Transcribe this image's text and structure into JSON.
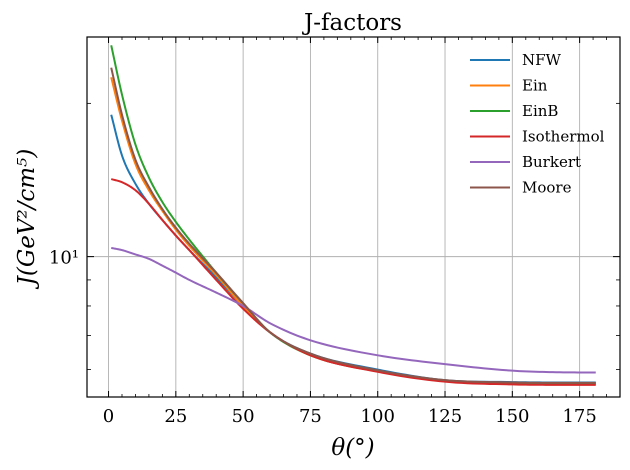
{
  "chart_data": {
    "type": "line",
    "title": "J-factors",
    "xlabel": "θ(°)",
    "ylabel": "J(GeV²/cm⁵)",
    "xlim": [
      -8,
      190
    ],
    "ylim": [
      5.3,
      27
    ],
    "yscale": "log",
    "grid": true,
    "legend_position": "top-right",
    "xticks": [
      0,
      25,
      50,
      75,
      100,
      125,
      150,
      175
    ],
    "xtick_labels": [
      "0",
      "25",
      "50",
      "75",
      "100",
      "125",
      "150",
      "175"
    ],
    "yticks": [
      10
    ],
    "ytick_labels": [
      "10¹"
    ],
    "x": [
      1,
      5,
      10,
      15,
      20,
      25,
      30,
      40,
      50,
      60,
      75,
      100,
      125,
      150,
      165,
      181
    ],
    "series": [
      {
        "name": "NFW",
        "color": "#1f77b4",
        "values": [
          19.0,
          15.8,
          13.9,
          12.7,
          11.8,
          11.0,
          10.3,
          9.1,
          8.0,
          7.1,
          6.45,
          6.0,
          5.72,
          5.67,
          5.66,
          5.66
        ]
      },
      {
        "name": "Ein",
        "color": "#ff7f0e",
        "values": [
          22.5,
          18.5,
          15.2,
          13.5,
          12.3,
          11.3,
          10.5,
          9.2,
          8.0,
          7.1,
          6.4,
          5.95,
          5.7,
          5.63,
          5.62,
          5.62
        ]
      },
      {
        "name": "EinB",
        "color": "#2ca02c",
        "values": [
          26.0,
          20.8,
          16.6,
          14.3,
          12.8,
          11.7,
          10.8,
          9.3,
          8.1,
          7.1,
          6.4,
          5.95,
          5.7,
          5.64,
          5.63,
          5.63
        ]
      },
      {
        "name": "Isothermol",
        "color": "#d62728",
        "values": [
          14.2,
          14.0,
          13.5,
          12.7,
          11.8,
          11.0,
          10.3,
          9.0,
          7.9,
          7.1,
          6.4,
          5.94,
          5.68,
          5.61,
          5.6,
          5.6
        ]
      },
      {
        "name": "Burkert",
        "color": "#9467bd",
        "values": [
          10.4,
          10.3,
          10.1,
          9.9,
          9.6,
          9.3,
          9.0,
          8.5,
          8.0,
          7.4,
          6.85,
          6.4,
          6.15,
          5.97,
          5.93,
          5.92
        ]
      },
      {
        "name": "Moore",
        "color": "#8c564b",
        "values": [
          23.5,
          19.0,
          15.5,
          13.7,
          12.4,
          11.4,
          10.6,
          9.3,
          8.1,
          7.1,
          6.45,
          5.98,
          5.72,
          5.66,
          5.65,
          5.65
        ]
      }
    ]
  }
}
